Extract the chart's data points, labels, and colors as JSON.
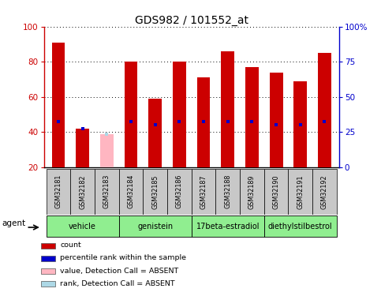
{
  "title": "GDS982 / 101552_at",
  "samples": [
    "GSM32181",
    "GSM32182",
    "GSM32183",
    "GSM32184",
    "GSM32185",
    "GSM32186",
    "GSM32187",
    "GSM32188",
    "GSM32189",
    "GSM32190",
    "GSM32191",
    "GSM32192"
  ],
  "bar_heights": [
    91,
    42,
    39,
    80,
    59,
    80,
    71,
    86,
    77,
    74,
    69,
    85
  ],
  "bar_colors": [
    "#cc0000",
    "#cc0000",
    "#ffb6c1",
    "#cc0000",
    "#cc0000",
    "#cc0000",
    "#cc0000",
    "#cc0000",
    "#cc0000",
    "#cc0000",
    "#cc0000",
    "#cc0000"
  ],
  "rank_values": [
    46,
    42,
    39,
    46,
    44,
    46,
    46,
    46,
    46,
    44,
    44,
    46
  ],
  "rank_colors": [
    "#0000cc",
    "#0000cc",
    "#add8e6",
    "#0000cc",
    "#0000cc",
    "#0000cc",
    "#0000cc",
    "#0000cc",
    "#0000cc",
    "#0000cc",
    "#0000cc",
    "#0000cc"
  ],
  "absent": [
    false,
    false,
    true,
    false,
    false,
    false,
    false,
    false,
    false,
    false,
    false,
    false
  ],
  "ylim": [
    20,
    100
  ],
  "yticks": [
    20,
    40,
    60,
    80,
    100
  ],
  "y2ticks_left": [
    20,
    40,
    60,
    80,
    100
  ],
  "y2ticklabels": [
    "0",
    "25",
    "50",
    "75",
    "100%"
  ],
  "groups": [
    {
      "label": "vehicle",
      "start": 0,
      "end": 3,
      "color": "#90ee90"
    },
    {
      "label": "genistein",
      "start": 3,
      "end": 6,
      "color": "#90ee90"
    },
    {
      "label": "17beta-estradiol",
      "start": 6,
      "end": 9,
      "color": "#90ee90"
    },
    {
      "label": "diethylstilbestrol",
      "start": 9,
      "end": 12,
      "color": "#90ee90"
    }
  ],
  "agent_label": "agent",
  "legend_items": [
    {
      "label": "count",
      "color": "#cc0000",
      "marker": "square"
    },
    {
      "label": "percentile rank within the sample",
      "color": "#0000cc",
      "marker": "square"
    },
    {
      "label": "value, Detection Call = ABSENT",
      "color": "#ffb6c1",
      "marker": "square"
    },
    {
      "label": "rank, Detection Call = ABSENT",
      "color": "#add8e6",
      "marker": "square"
    }
  ],
  "bar_width": 0.55,
  "tick_area_color": "#c8c8c8",
  "left_tick_color": "#cc0000",
  "right_tick_color": "#0000cc"
}
